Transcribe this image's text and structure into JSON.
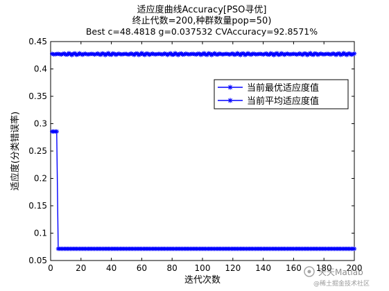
{
  "chart_data": {
    "type": "line",
    "title_lines": [
      "适应度曲线Accuracy[PSO寻优]",
      "终止代数=200,种群数量pop=50)",
      "Best c=48.4818 g=0.037532 CVAccuracy=92.8571%"
    ],
    "xlabel": "迭代次数",
    "ylabel": "适应度(分类错误率)",
    "xlim": [
      0,
      200
    ],
    "ylim": [
      0.05,
      0.45
    ],
    "xticks": [
      0,
      20,
      40,
      60,
      80,
      100,
      120,
      140,
      160,
      180,
      200
    ],
    "yticks": [
      0.05,
      0.1,
      0.15,
      0.2,
      0.25,
      0.3,
      0.35,
      0.4,
      0.45
    ],
    "ytick_labels": [
      "0.05",
      "0.1",
      "0.15",
      "0.2",
      "0.25",
      "0.3",
      "0.35",
      "0.4",
      "0.45"
    ],
    "grid": false,
    "legend_position": "upper-right",
    "series": [
      {
        "name": "当前最优适应度值",
        "color": "#0000ff",
        "marker": "asterisk",
        "breakpoints": [
          [
            1,
            0.2857
          ],
          [
            4,
            0.2857
          ],
          [
            5,
            0.0714
          ],
          [
            200,
            0.0714
          ]
        ]
      },
      {
        "name": "当前平均适应度值",
        "color": "#0000ff",
        "marker": "asterisk",
        "base": 0.4271,
        "noise": 0.0018,
        "range": [
          1,
          200
        ]
      }
    ]
  },
  "watermark": {
    "line1": "天天Matlab",
    "line2": "@稀土掘金技术社区"
  }
}
